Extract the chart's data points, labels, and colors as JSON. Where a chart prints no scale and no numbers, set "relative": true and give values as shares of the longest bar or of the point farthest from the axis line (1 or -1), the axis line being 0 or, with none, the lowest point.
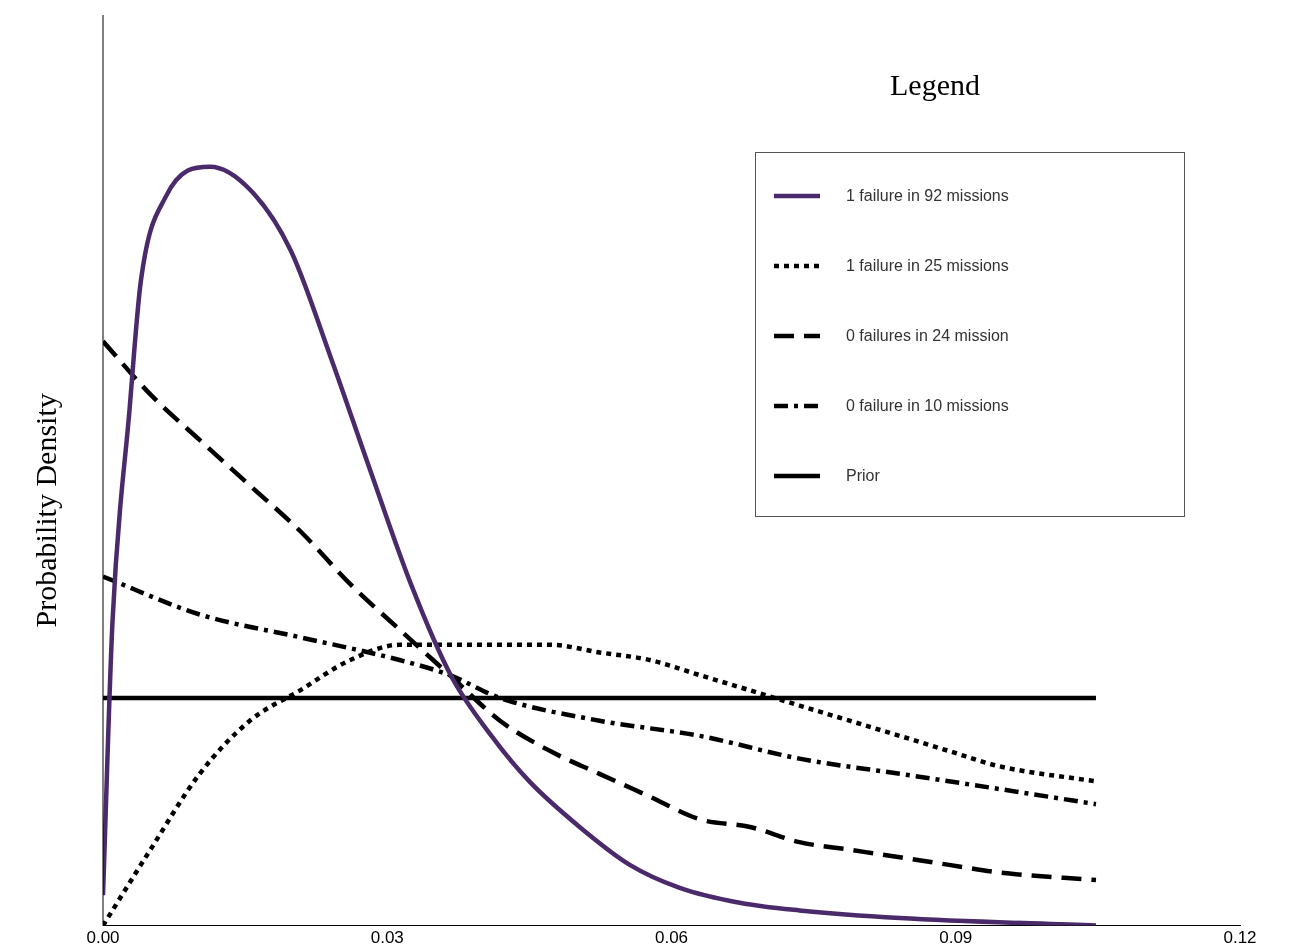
{
  "chart_data": {
    "type": "line",
    "ylabel": "Probability Density",
    "legend_title": "Legend",
    "legend": "top right",
    "relative": true,
    "marker": "none",
    "grid": false,
    "xlim": [
      0,
      0.12
    ],
    "xticks": [
      {
        "value": 0,
        "label": "0.00"
      },
      {
        "value": 0.03,
        "label": "0.03"
      },
      {
        "value": 0.06,
        "label": "0.06"
      },
      {
        "value": 0.09,
        "label": "0.09"
      },
      {
        "value": 0.12,
        "label": "0.12"
      }
    ],
    "series": [
      {
        "name": "1 failure in 92 missions",
        "color": "#4b2a6b",
        "line_style": "solid",
        "x": [
          0,
          0.001,
          0.0028,
          0.004,
          0.0066,
          0.0113,
          0.0155,
          0.0198,
          0.024,
          0.0282,
          0.0325,
          0.0367,
          0.041,
          0.045,
          0.0503,
          0.0556,
          0.0608,
          0.0672,
          0.0735,
          0.0841,
          0.1048
        ],
        "values": [
          0.04,
          0.4,
          0.68,
          0.85,
          0.96,
          1,
          0.97,
          0.89,
          0.75,
          0.6,
          0.45,
          0.33,
          0.25,
          0.19,
          0.13,
          0.08,
          0.05,
          0.03,
          0.02,
          0.01,
          0
        ]
      },
      {
        "name": "1 failure in 25 missions",
        "color": "#000000",
        "line_style": "dotted",
        "x": [
          0,
          0.005,
          0.0102,
          0.0155,
          0.0208,
          0.0261,
          0.0313,
          0.0366,
          0.0419,
          0.0472,
          0.0524,
          0.0577,
          0.063,
          0.0683,
          0.0735,
          0.0788,
          0.0841,
          0.0893,
          0.0946,
          0.1048
        ],
        "values": [
          0,
          0.1,
          0.2,
          0.27,
          0.31,
          0.35,
          0.37,
          0.37,
          0.37,
          0.37,
          0.36,
          0.35,
          0.33,
          0.31,
          0.29,
          0.27,
          0.25,
          0.23,
          0.21,
          0.19
        ]
      },
      {
        "name": "0 failures in 24 mission",
        "color": "#000000",
        "line_style": "dashed",
        "x": [
          0,
          0.005,
          0.0102,
          0.0155,
          0.0208,
          0.0261,
          0.0313,
          0.0366,
          0.0419,
          0.0472,
          0.0524,
          0.0577,
          0.063,
          0.0683,
          0.0735,
          0.0788,
          0.0841,
          0.0893,
          0.0946,
          0.1048
        ],
        "values": [
          0.77,
          0.7,
          0.64,
          0.58,
          0.52,
          0.45,
          0.39,
          0.33,
          0.27,
          0.23,
          0.2,
          0.17,
          0.14,
          0.13,
          0.11,
          0.1,
          0.09,
          0.08,
          0.07,
          0.06
        ]
      },
      {
        "name": "0 failure in 10 missions",
        "color": "#000000",
        "line_style": "dashdot",
        "x": [
          0,
          0.0102,
          0.0208,
          0.0313,
          0.0366,
          0.0419,
          0.0524,
          0.063,
          0.0735,
          0.0841,
          0.0946,
          0.1048
        ],
        "values": [
          0.46,
          0.41,
          0.38,
          0.35,
          0.33,
          0.3,
          0.27,
          0.25,
          0.22,
          0.2,
          0.18,
          0.16
        ]
      },
      {
        "name": "Prior",
        "color": "#000000",
        "line_style": "solid",
        "x": [
          0,
          0.1048
        ],
        "values": [
          0.3,
          0.3
        ]
      }
    ]
  }
}
